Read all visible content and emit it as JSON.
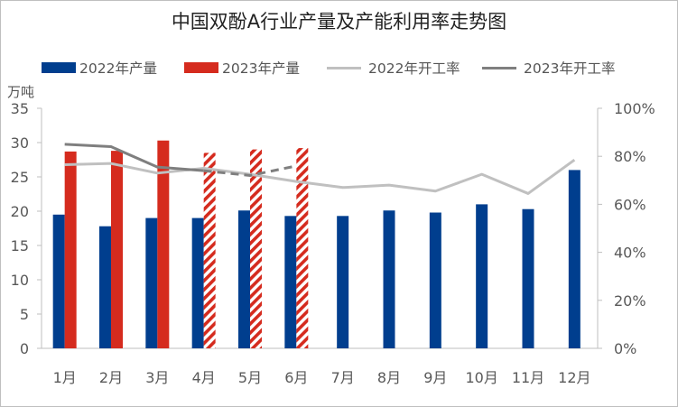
{
  "chart_data": {
    "type": "bar",
    "title": "中国双酚A行业产量及产能利用率走势图",
    "y_unit_label": "万吨",
    "categories": [
      "1月",
      "2月",
      "3月",
      "4月",
      "5月",
      "6月",
      "7月",
      "8月",
      "9月",
      "10月",
      "11月",
      "12月"
    ],
    "ylim": [
      0,
      35
    ],
    "yticks": [
      "0",
      "5",
      "10",
      "15",
      "20",
      "25",
      "30",
      "35"
    ],
    "y2lim": [
      0,
      100
    ],
    "y2ticks": [
      "0%",
      "20%",
      "40%",
      "60%",
      "80%",
      "100%"
    ],
    "legend_position": "top",
    "grid": false,
    "series": [
      {
        "name": "2022年产量",
        "type": "bar",
        "axis": "left",
        "color": "#003E8E",
        "values": [
          19.5,
          17.8,
          19.0,
          19.0,
          20.1,
          19.3,
          19.3,
          20.1,
          19.8,
          21.0,
          20.3,
          26.0
        ]
      },
      {
        "name": "2023年产量",
        "type": "bar",
        "axis": "left",
        "color": "#D52B1E",
        "values": [
          28.7,
          28.8,
          30.3,
          28.5,
          29.0,
          29.2,
          null,
          null,
          null,
          null,
          null,
          null
        ],
        "hatched_from_index": 3
      },
      {
        "name": "2022年开工率",
        "type": "line",
        "axis": "right",
        "color": "#C0C0C0",
        "values": [
          76.5,
          77.0,
          73.0,
          75.0,
          72.5,
          69.5,
          67.0,
          68.0,
          65.5,
          72.5,
          64.5,
          78.5
        ]
      },
      {
        "name": "2023年开工率",
        "type": "line",
        "axis": "right",
        "color": "#7F7F7F",
        "values": [
          85.0,
          84.0,
          75.5,
          74.0,
          72.0,
          76.0,
          null,
          null,
          null,
          null,
          null,
          null
        ],
        "dashed_from_index": 3
      }
    ]
  }
}
